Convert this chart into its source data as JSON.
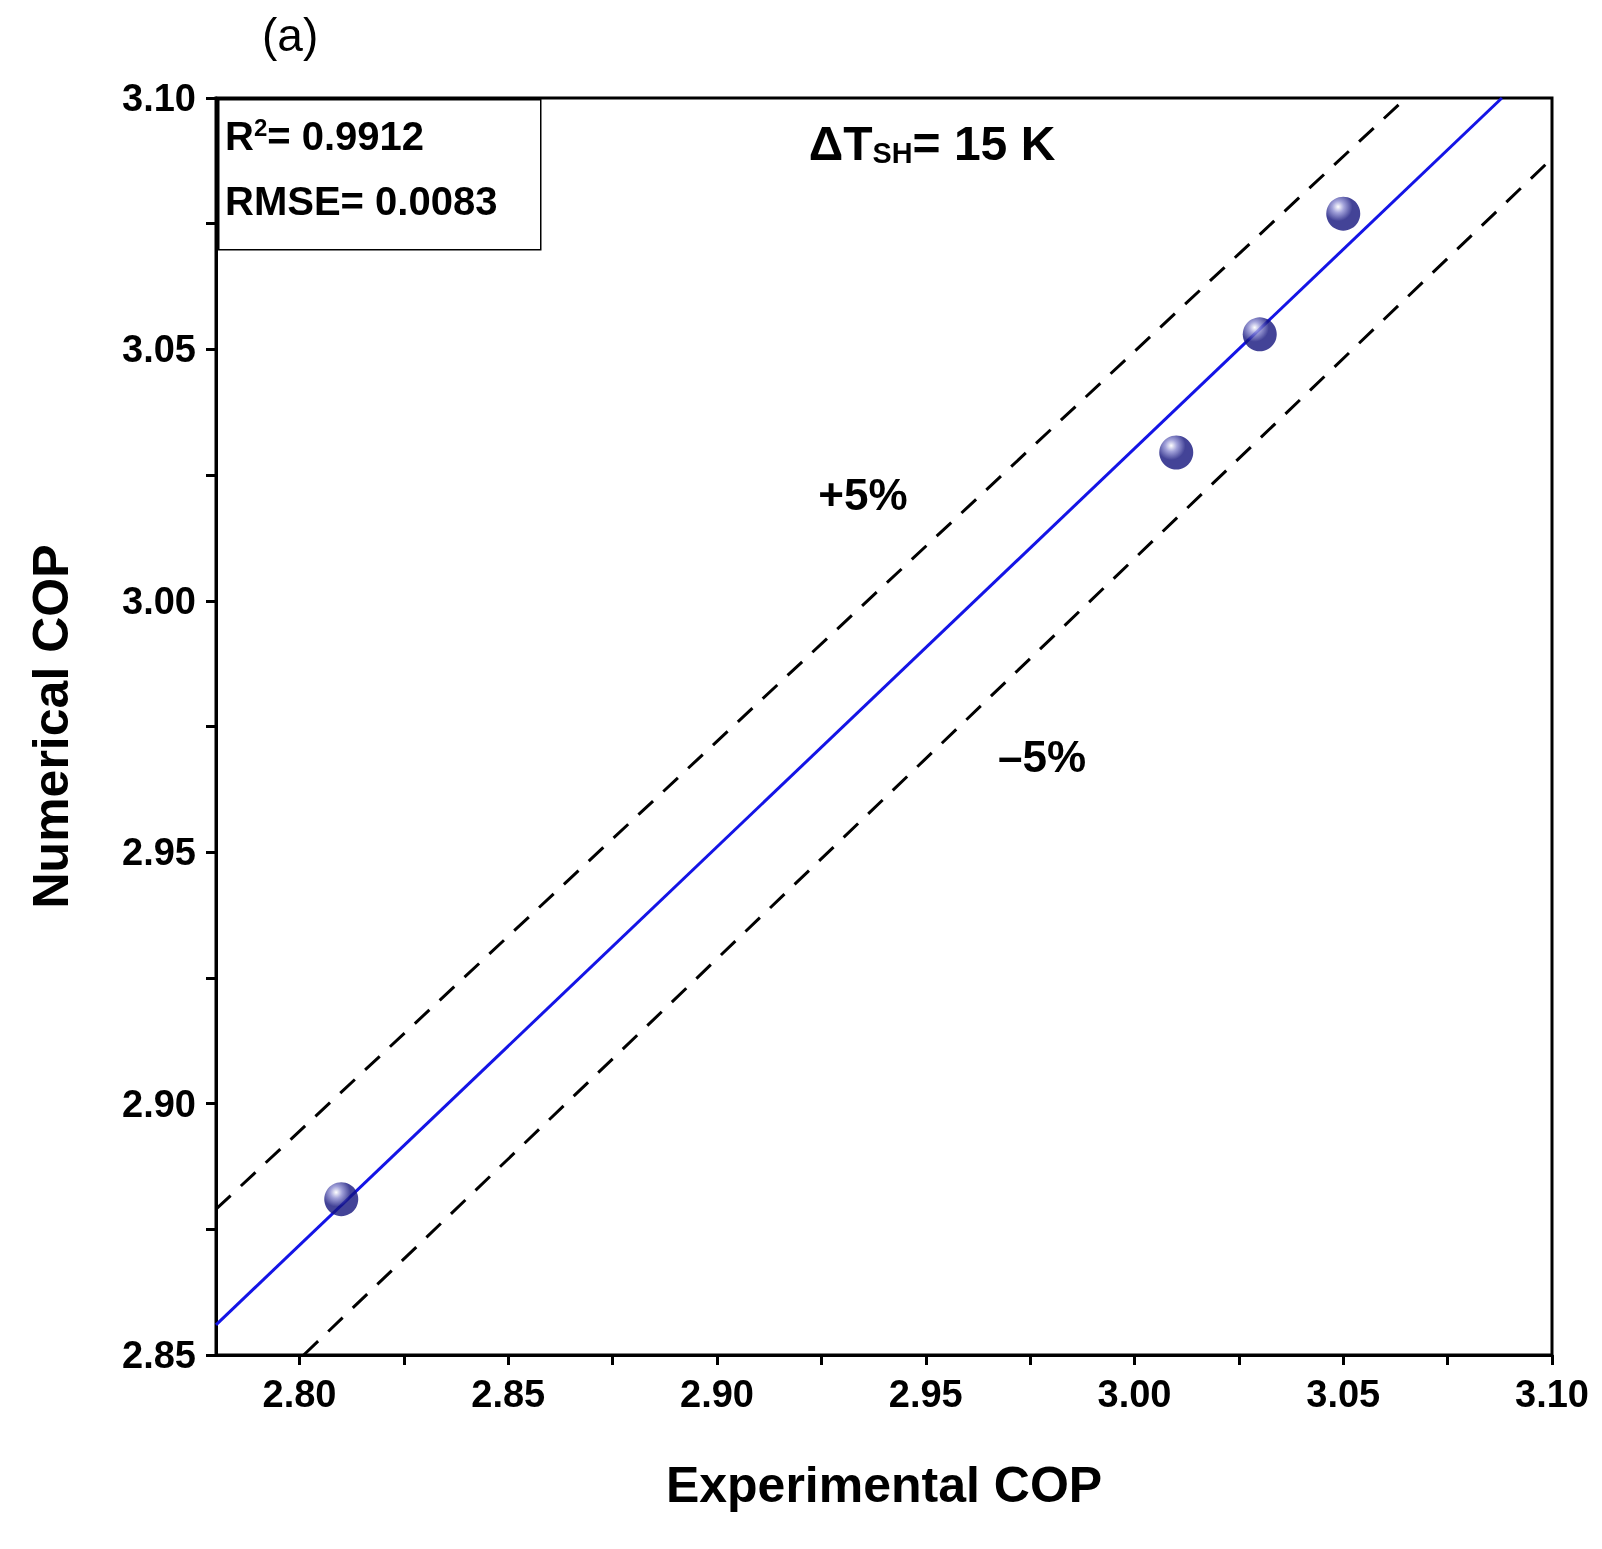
{
  "chart_data": {
    "type": "scatter",
    "xlabel": "Experimental COP",
    "ylabel": "Numerical COP",
    "xlim": [
      2.78,
      3.1
    ],
    "ylim": [
      2.85,
      3.1
    ],
    "xticks": [
      {
        "value": 2.8,
        "label": "2.80"
      },
      {
        "value": 2.825,
        "label": null
      },
      2.85,
      {
        "value": 2.875,
        "label": null
      },
      {
        "value": 2.9,
        "label": "2.90"
      },
      {
        "value": 2.925,
        "label": null
      },
      2.95,
      {
        "value": 2.975,
        "label": null
      },
      {
        "value": 3,
        "label": "3.00"
      },
      {
        "value": 3.025,
        "label": null
      },
      3.05,
      {
        "value": 3.075,
        "label": null
      },
      {
        "value": 3.1,
        "label": "3.10"
      }
    ],
    "yticks": [
      2.85,
      {
        "value": 2.875,
        "label": null
      },
      {
        "value": 2.9,
        "label": "2.90"
      },
      {
        "value": 2.925,
        "label": null
      },
      2.95,
      {
        "value": 2.975,
        "label": null
      },
      {
        "value": 3,
        "label": "3.00"
      },
      {
        "value": 3.025,
        "label": null
      },
      3.05,
      {
        "value": 3.075,
        "label": null
      },
      {
        "value": 3.1,
        "label": "3.10"
      }
    ],
    "grid": false,
    "marker": "circle",
    "series": [
      {
        "type": "line",
        "color": "#000000",
        "line_style": "dashed",
        "marker": "none",
        "x": [
          2.78,
          3.065
        ],
        "values": [
          2.879,
          3.1
        ]
      },
      {
        "type": "line",
        "color": "#000000",
        "line_style": "dashed",
        "marker": "none",
        "x": [
          2.801,
          3.1
        ],
        "values": [
          2.85,
          3.088
        ]
      },
      {
        "type": "line",
        "color": "#1414e6",
        "line_style": "solid",
        "marker": "none",
        "x": [
          2.78,
          3.088
        ],
        "values": [
          2.856,
          3.1
        ]
      },
      {
        "type": "scatter",
        "color": "#14147d",
        "x": [
          2.81,
          3.01,
          3.03,
          3.05
        ],
        "values": [
          2.881,
          3.0295,
          3.053,
          3.077
        ]
      }
    ],
    "annotations": [
      "(a)",
      "R$^{2}$= 0.9912",
      "RMSE= 0.0083",
      "ΔT$_{SH}$= 15 K",
      "+5%",
      "–5%"
    ]
  }
}
